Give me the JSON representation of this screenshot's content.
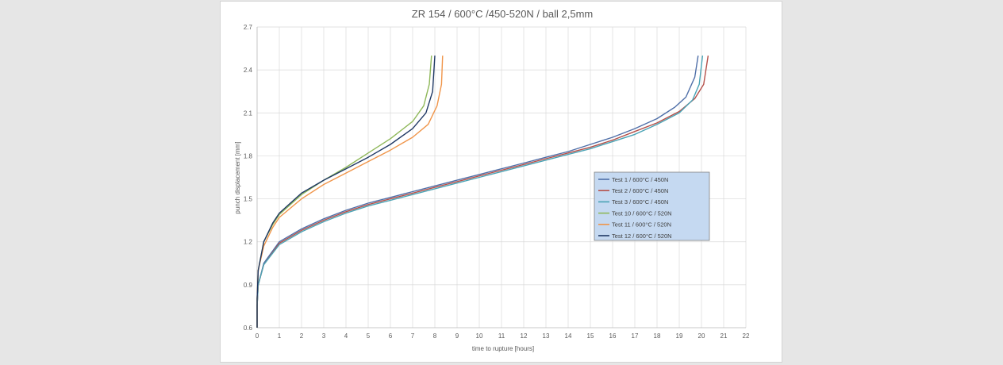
{
  "chart_data": {
    "type": "line",
    "title": "ZR 154 / 600°C /450-520N / ball 2,5mm",
    "xlabel": "time to rupture [hours]",
    "ylabel": "punch displacement [mm]",
    "xlim": [
      0,
      22
    ],
    "ylim": [
      0.6,
      2.7
    ],
    "xticks": [
      "0",
      "1",
      "2",
      "3",
      "4",
      "5",
      "6",
      "7",
      "8",
      "9",
      "10",
      "11",
      "12",
      "13",
      "14",
      "15",
      "16",
      "17",
      "18",
      "19",
      "20",
      "21",
      "22"
    ],
    "yticks": [
      "0.6",
      "0.9",
      "1.2",
      "1.5",
      "1.8",
      "2.1",
      "2.4",
      "2.7"
    ],
    "grid": true,
    "legend_position": "right",
    "series": [
      {
        "name": "Test 1 / 600°C / 450N",
        "color": "#4f6fa8",
        "points": [
          [
            0,
            0.6
          ],
          [
            0,
            0.75
          ],
          [
            0.05,
            0.9
          ],
          [
            0.3,
            1.05
          ],
          [
            1,
            1.2
          ],
          [
            2,
            1.29
          ],
          [
            3,
            1.36
          ],
          [
            4,
            1.42
          ],
          [
            5,
            1.47
          ],
          [
            6,
            1.51
          ],
          [
            7,
            1.55
          ],
          [
            8,
            1.59
          ],
          [
            9,
            1.63
          ],
          [
            10,
            1.67
          ],
          [
            11,
            1.71
          ],
          [
            12,
            1.75
          ],
          [
            13,
            1.79
          ],
          [
            14,
            1.83
          ],
          [
            15,
            1.88
          ],
          [
            16,
            1.93
          ],
          [
            17,
            1.99
          ],
          [
            18,
            2.06
          ],
          [
            18.8,
            2.14
          ],
          [
            19.3,
            2.21
          ],
          [
            19.7,
            2.35
          ],
          [
            19.85,
            2.5
          ]
        ]
      },
      {
        "name": "Test 2 / 600°C / 450N",
        "color": "#b5504a",
        "points": [
          [
            0,
            0.6
          ],
          [
            0,
            0.75
          ],
          [
            0.05,
            0.9
          ],
          [
            0.3,
            1.04
          ],
          [
            1,
            1.19
          ],
          [
            2,
            1.28
          ],
          [
            3,
            1.35
          ],
          [
            4,
            1.41
          ],
          [
            5,
            1.46
          ],
          [
            6,
            1.5
          ],
          [
            7,
            1.54
          ],
          [
            8,
            1.58
          ],
          [
            9,
            1.62
          ],
          [
            10,
            1.66
          ],
          [
            11,
            1.7
          ],
          [
            12,
            1.74
          ],
          [
            13,
            1.78
          ],
          [
            14,
            1.82
          ],
          [
            15,
            1.86
          ],
          [
            16,
            1.91
          ],
          [
            17,
            1.97
          ],
          [
            18,
            2.03
          ],
          [
            19,
            2.11
          ],
          [
            19.7,
            2.2
          ],
          [
            20.1,
            2.3
          ],
          [
            20.3,
            2.5
          ]
        ]
      },
      {
        "name": "Test 3 / 600°C / 450N",
        "color": "#4aa3b5",
        "points": [
          [
            0,
            0.6
          ],
          [
            0,
            0.75
          ],
          [
            0.05,
            0.9
          ],
          [
            0.3,
            1.04
          ],
          [
            1,
            1.18
          ],
          [
            2,
            1.27
          ],
          [
            3,
            1.34
          ],
          [
            4,
            1.4
          ],
          [
            5,
            1.45
          ],
          [
            6,
            1.49
          ],
          [
            7,
            1.53
          ],
          [
            8,
            1.57
          ],
          [
            9,
            1.61
          ],
          [
            10,
            1.65
          ],
          [
            11,
            1.69
          ],
          [
            12,
            1.73
          ],
          [
            13,
            1.77
          ],
          [
            14,
            1.81
          ],
          [
            15,
            1.85
          ],
          [
            16,
            1.9
          ],
          [
            17,
            1.95
          ],
          [
            18,
            2.02
          ],
          [
            19,
            2.1
          ],
          [
            19.6,
            2.19
          ],
          [
            19.9,
            2.3
          ],
          [
            20.05,
            2.5
          ]
        ]
      },
      {
        "name": "Test 10 / 600°C / 520N",
        "color": "#8fb85a",
        "points": [
          [
            0,
            0.6
          ],
          [
            0,
            0.8
          ],
          [
            0.05,
            1.0
          ],
          [
            0.3,
            1.2
          ],
          [
            0.7,
            1.32
          ],
          [
            1,
            1.39
          ],
          [
            2,
            1.53
          ],
          [
            3,
            1.63
          ],
          [
            4,
            1.72
          ],
          [
            5,
            1.82
          ],
          [
            6,
            1.92
          ],
          [
            7,
            2.04
          ],
          [
            7.5,
            2.15
          ],
          [
            7.75,
            2.3
          ],
          [
            7.85,
            2.5
          ]
        ]
      },
      {
        "name": "Test 11 / 600°C / 520N",
        "color": "#f0954a",
        "points": [
          [
            0,
            0.6
          ],
          [
            0,
            0.8
          ],
          [
            0.05,
            1.0
          ],
          [
            0.3,
            1.17
          ],
          [
            0.7,
            1.3
          ],
          [
            1,
            1.37
          ],
          [
            2,
            1.5
          ],
          [
            3,
            1.6
          ],
          [
            4,
            1.68
          ],
          [
            5,
            1.76
          ],
          [
            6,
            1.84
          ],
          [
            7,
            1.93
          ],
          [
            7.7,
            2.02
          ],
          [
            8.1,
            2.15
          ],
          [
            8.3,
            2.3
          ],
          [
            8.35,
            2.5
          ]
        ]
      },
      {
        "name": "Test 12 / 600°C / 520N",
        "color": "#1f3864",
        "points": [
          [
            0,
            0.6
          ],
          [
            0,
            0.8
          ],
          [
            0.05,
            1.0
          ],
          [
            0.3,
            1.2
          ],
          [
            0.7,
            1.33
          ],
          [
            1,
            1.4
          ],
          [
            2,
            1.54
          ],
          [
            3,
            1.63
          ],
          [
            4,
            1.71
          ],
          [
            5,
            1.79
          ],
          [
            6,
            1.88
          ],
          [
            7,
            1.99
          ],
          [
            7.6,
            2.1
          ],
          [
            7.9,
            2.25
          ],
          [
            8,
            2.5
          ]
        ]
      }
    ]
  }
}
